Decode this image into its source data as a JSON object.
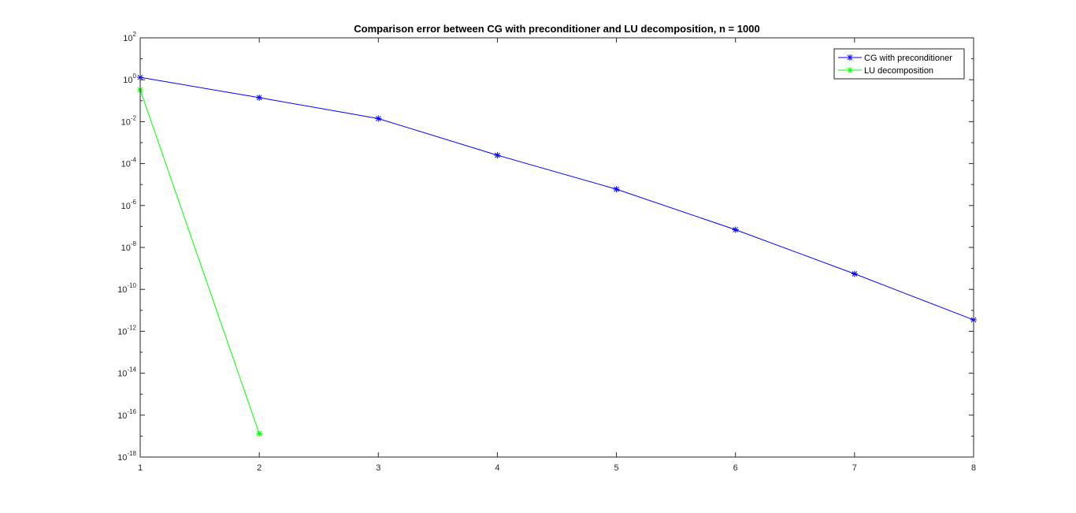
{
  "chart_data": {
    "type": "line",
    "title": "Comparison error between CG with preconditioner and LU decomposition, n = 1000",
    "xlabel": "",
    "ylabel": "",
    "xlim": [
      1,
      8
    ],
    "ylim": [
      1e-18,
      100.0
    ],
    "yscale": "log",
    "x_ticks": [
      1,
      2,
      3,
      4,
      5,
      6,
      7,
      8
    ],
    "y_ticks": [
      {
        "base": "10",
        "exp": "2"
      },
      {
        "base": "10",
        "exp": "0"
      },
      {
        "base": "10",
        "exp": "-2"
      },
      {
        "base": "10",
        "exp": "-4"
      },
      {
        "base": "10",
        "exp": "-6"
      },
      {
        "base": "10",
        "exp": "-8"
      },
      {
        "base": "10",
        "exp": "-10"
      },
      {
        "base": "10",
        "exp": "-12"
      },
      {
        "base": "10",
        "exp": "-14"
      },
      {
        "base": "10",
        "exp": "-16"
      },
      {
        "base": "10",
        "exp": "-18"
      }
    ],
    "grid": false,
    "legend_position": "top-right",
    "series": [
      {
        "name": "CG with preconditioner",
        "color": "#0000ff",
        "marker": "asterisk",
        "x": [
          1,
          2,
          3,
          4,
          5,
          6,
          7,
          8
        ],
        "y": [
          1.3,
          0.14,
          0.014,
          0.00025,
          6e-06,
          7e-08,
          5.5e-10,
          3.5e-12
        ]
      },
      {
        "name": "LU decomposition",
        "color": "#00ff00",
        "marker": "asterisk",
        "x": [
          1,
          2
        ],
        "y": [
          0.33,
          1.3e-17
        ]
      }
    ]
  }
}
